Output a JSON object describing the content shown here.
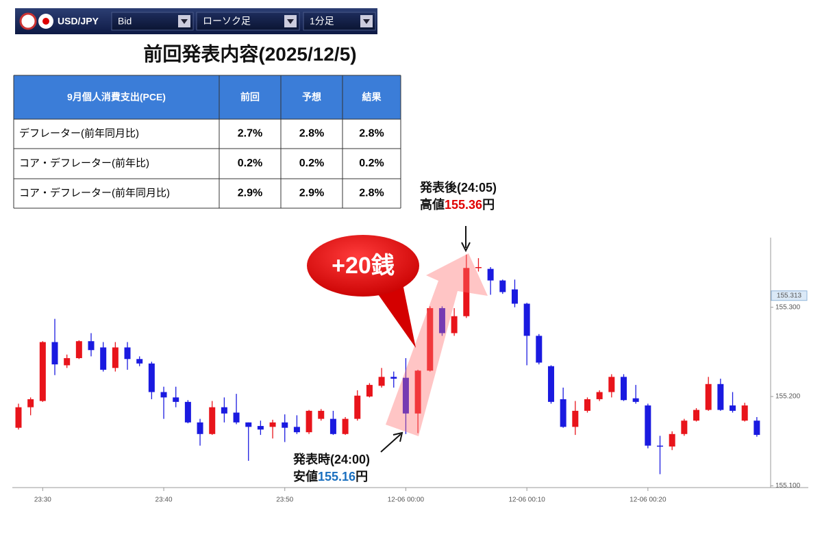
{
  "toolbar": {
    "pair": "USD/JPY",
    "price_type": "Bid",
    "chart_kind": "ローソク足",
    "interval": "1分足"
  },
  "title": "前回発表内容(2025/12/5)",
  "table": {
    "header": [
      "9月個人消費支出(PCE)",
      "前回",
      "予想",
      "結果"
    ],
    "rows": [
      [
        "デフレーター(前年同月比)",
        "2.7%",
        "2.8%",
        "2.8%"
      ],
      [
        "コア・デフレーター(前年比)",
        "0.2%",
        "0.2%",
        "0.2%"
      ],
      [
        "コア・デフレーター(前年同月比)",
        "2.9%",
        "2.9%",
        "2.8%"
      ]
    ]
  },
  "chart_data": {
    "type": "candlestick",
    "categories": [
      null,
      null,
      "23:30",
      null,
      null,
      null,
      null,
      null,
      null,
      null,
      null,
      null,
      "23:40",
      null,
      null,
      null,
      null,
      null,
      null,
      null,
      null,
      null,
      "23:50",
      null,
      null,
      null,
      null,
      null,
      null,
      null,
      null,
      null,
      "12-06 00:00",
      null,
      null,
      null,
      null,
      null,
      null,
      null,
      null,
      null,
      "12-06 00:10",
      null,
      null,
      null,
      null,
      null,
      null,
      null,
      null,
      null,
      "12-06 00:20",
      null,
      null,
      null,
      null,
      null,
      null,
      null,
      null,
      null
    ],
    "open": [
      155.165,
      155.188,
      155.195,
      155.261,
      155.235,
      155.243,
      155.262,
      155.255,
      155.232,
      155.255,
      155.242,
      155.237,
      155.205,
      155.199,
      155.194,
      155.171,
      155.158,
      155.188,
      155.182,
      155.171,
      155.167,
      155.166,
      155.171,
      155.166,
      155.16,
      155.175,
      155.175,
      155.158,
      155.175,
      155.2,
      155.212,
      155.222,
      155.221,
      155.181,
      155.229,
      155.299,
      155.271,
      155.29,
      155.344,
      155.343,
      155.33,
      155.32,
      155.304,
      155.268,
      155.234,
      155.197,
      155.166,
      155.184,
      155.197,
      155.205,
      155.222,
      155.198,
      155.19,
      155.145,
      155.144,
      155.158,
      155.173,
      155.185,
      155.214,
      155.19,
      155.173,
      155.173
    ],
    "high": [
      155.192,
      155.199,
      155.262,
      155.287,
      155.247,
      155.263,
      155.271,
      155.261,
      155.261,
      155.261,
      155.245,
      155.239,
      155.211,
      155.211,
      155.196,
      155.175,
      155.195,
      155.199,
      155.203,
      155.171,
      155.173,
      155.174,
      155.18,
      155.179,
      155.185,
      155.186,
      155.184,
      155.177,
      155.207,
      155.215,
      155.232,
      155.228,
      155.243,
      155.23,
      155.301,
      155.301,
      155.299,
      155.359,
      155.355,
      155.345,
      155.331,
      155.331,
      155.305,
      155.27,
      155.235,
      155.21,
      155.195,
      155.199,
      155.207,
      155.225,
      155.225,
      155.213,
      155.192,
      155.156,
      155.161,
      155.175,
      155.187,
      155.222,
      155.22,
      155.205,
      155.193,
      155.177
    ],
    "low": [
      155.163,
      155.179,
      155.194,
      155.224,
      155.232,
      155.242,
      155.245,
      155.228,
      155.228,
      155.23,
      155.234,
      155.197,
      155.175,
      155.188,
      155.17,
      155.145,
      155.157,
      155.171,
      155.169,
      155.128,
      155.157,
      155.153,
      155.149,
      155.158,
      155.158,
      155.173,
      155.157,
      155.157,
      155.173,
      155.199,
      155.21,
      155.21,
      155.158,
      155.159,
      155.228,
      155.268,
      155.268,
      155.288,
      155.34,
      155.314,
      155.315,
      155.3,
      155.235,
      155.236,
      155.192,
      155.165,
      155.157,
      155.182,
      155.195,
      155.199,
      155.195,
      155.192,
      155.142,
      155.113,
      155.14,
      155.156,
      155.172,
      155.184,
      155.184,
      155.182,
      155.172,
      155.155
    ],
    "close": [
      155.188,
      155.197,
      155.261,
      155.236,
      155.243,
      155.262,
      155.252,
      155.23,
      155.255,
      155.242,
      155.237,
      155.205,
      155.199,
      155.194,
      155.171,
      155.158,
      155.188,
      155.181,
      155.171,
      155.166,
      155.163,
      155.171,
      155.165,
      155.16,
      155.184,
      155.184,
      155.158,
      155.175,
      155.201,
      155.213,
      155.222,
      155.22,
      155.181,
      155.229,
      155.299,
      155.271,
      155.29,
      155.344,
      155.345,
      155.33,
      155.317,
      155.304,
      155.268,
      155.238,
      155.194,
      155.166,
      155.184,
      155.197,
      155.205,
      155.222,
      155.196,
      155.194,
      155.145,
      155.144,
      155.158,
      155.173,
      155.185,
      155.214,
      155.185,
      155.184,
      155.19,
      155.157
    ],
    "up_color": "#e8141b",
    "down_color": "#1a1ae0",
    "ylim": [
      155.098,
      155.378
    ],
    "yticks": [
      {
        "value": 155.1,
        "label": "155.100"
      },
      {
        "value": 155.2,
        "label": "155.200"
      },
      {
        "value": 155.3,
        "label": "155.300"
      }
    ],
    "last_price": {
      "value": 155.313,
      "label": "155.313"
    },
    "grid": false,
    "high_note": {
      "title": "発表後(24:05)",
      "prefix": "高値",
      "value": "155.36",
      "suffix": "円"
    },
    "low_note": {
      "title": "発表時(24:00)",
      "prefix": "安値",
      "value": "155.16",
      "suffix": "円"
    },
    "callout": "+20銭"
  }
}
